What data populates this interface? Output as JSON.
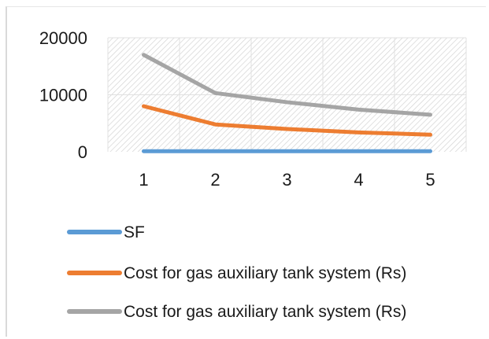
{
  "chart_data": {
    "type": "line",
    "title": "",
    "xlabel": "",
    "ylabel": "",
    "categories": [
      "1",
      "2",
      "3",
      "4",
      "5"
    ],
    "ylim": [
      0,
      20000
    ],
    "yticks": [
      "0",
      "10000",
      "20000"
    ],
    "grid": true,
    "legend_position": "bottom",
    "series": [
      {
        "name": "SF",
        "values": [
          100,
          100,
          100,
          100,
          100
        ],
        "color": "#5b9bd5"
      },
      {
        "name": "Cost for gas auxiliary tank system (Rs)",
        "values": [
          8000,
          4800,
          4000,
          3400,
          3000
        ],
        "color": "#ed7d31"
      },
      {
        "name": "Cost for gas auxiliary tank system (Rs)",
        "values": [
          17000,
          10300,
          8700,
          7400,
          6500
        ],
        "color": "#a5a5a5"
      }
    ]
  }
}
